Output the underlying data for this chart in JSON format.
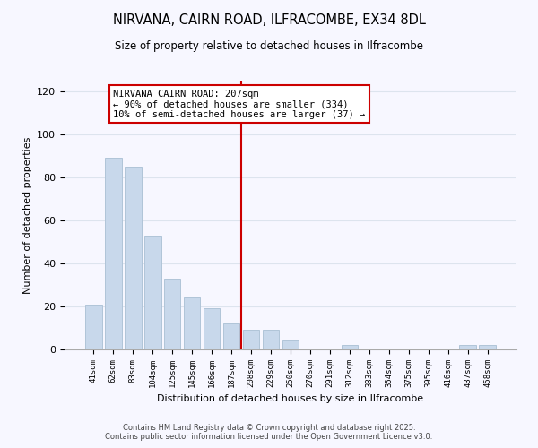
{
  "title": "NIRVANA, CAIRN ROAD, ILFRACOMBE, EX34 8DL",
  "subtitle": "Size of property relative to detached houses in Ilfracombe",
  "xlabel": "Distribution of detached houses by size in Ilfracombe",
  "ylabel": "Number of detached properties",
  "bar_labels": [
    "41sqm",
    "62sqm",
    "83sqm",
    "104sqm",
    "125sqm",
    "145sqm",
    "166sqm",
    "187sqm",
    "208sqm",
    "229sqm",
    "250sqm",
    "270sqm",
    "291sqm",
    "312sqm",
    "333sqm",
    "354sqm",
    "375sqm",
    "395sqm",
    "416sqm",
    "437sqm",
    "458sqm"
  ],
  "bar_values": [
    21,
    89,
    85,
    53,
    33,
    24,
    19,
    12,
    9,
    9,
    4,
    0,
    0,
    2,
    0,
    0,
    0,
    0,
    0,
    2,
    2
  ],
  "bar_color": "#c8d8eb",
  "bar_edge_color": "#b0c4d8",
  "vline_index": 7.5,
  "annotation_title": "NIRVANA CAIRN ROAD: 207sqm",
  "annotation_line1": "← 90% of detached houses are smaller (334)",
  "annotation_line2": "10% of semi-detached houses are larger (37) →",
  "ylim": [
    0,
    125
  ],
  "yticks": [
    0,
    20,
    40,
    60,
    80,
    100,
    120
  ],
  "footer1": "Contains HM Land Registry data © Crown copyright and database right 2025.",
  "footer2": "Contains public sector information licensed under the Open Government Licence v3.0.",
  "bg_color": "#f7f7ff",
  "grid_color": "#dde4ee"
}
